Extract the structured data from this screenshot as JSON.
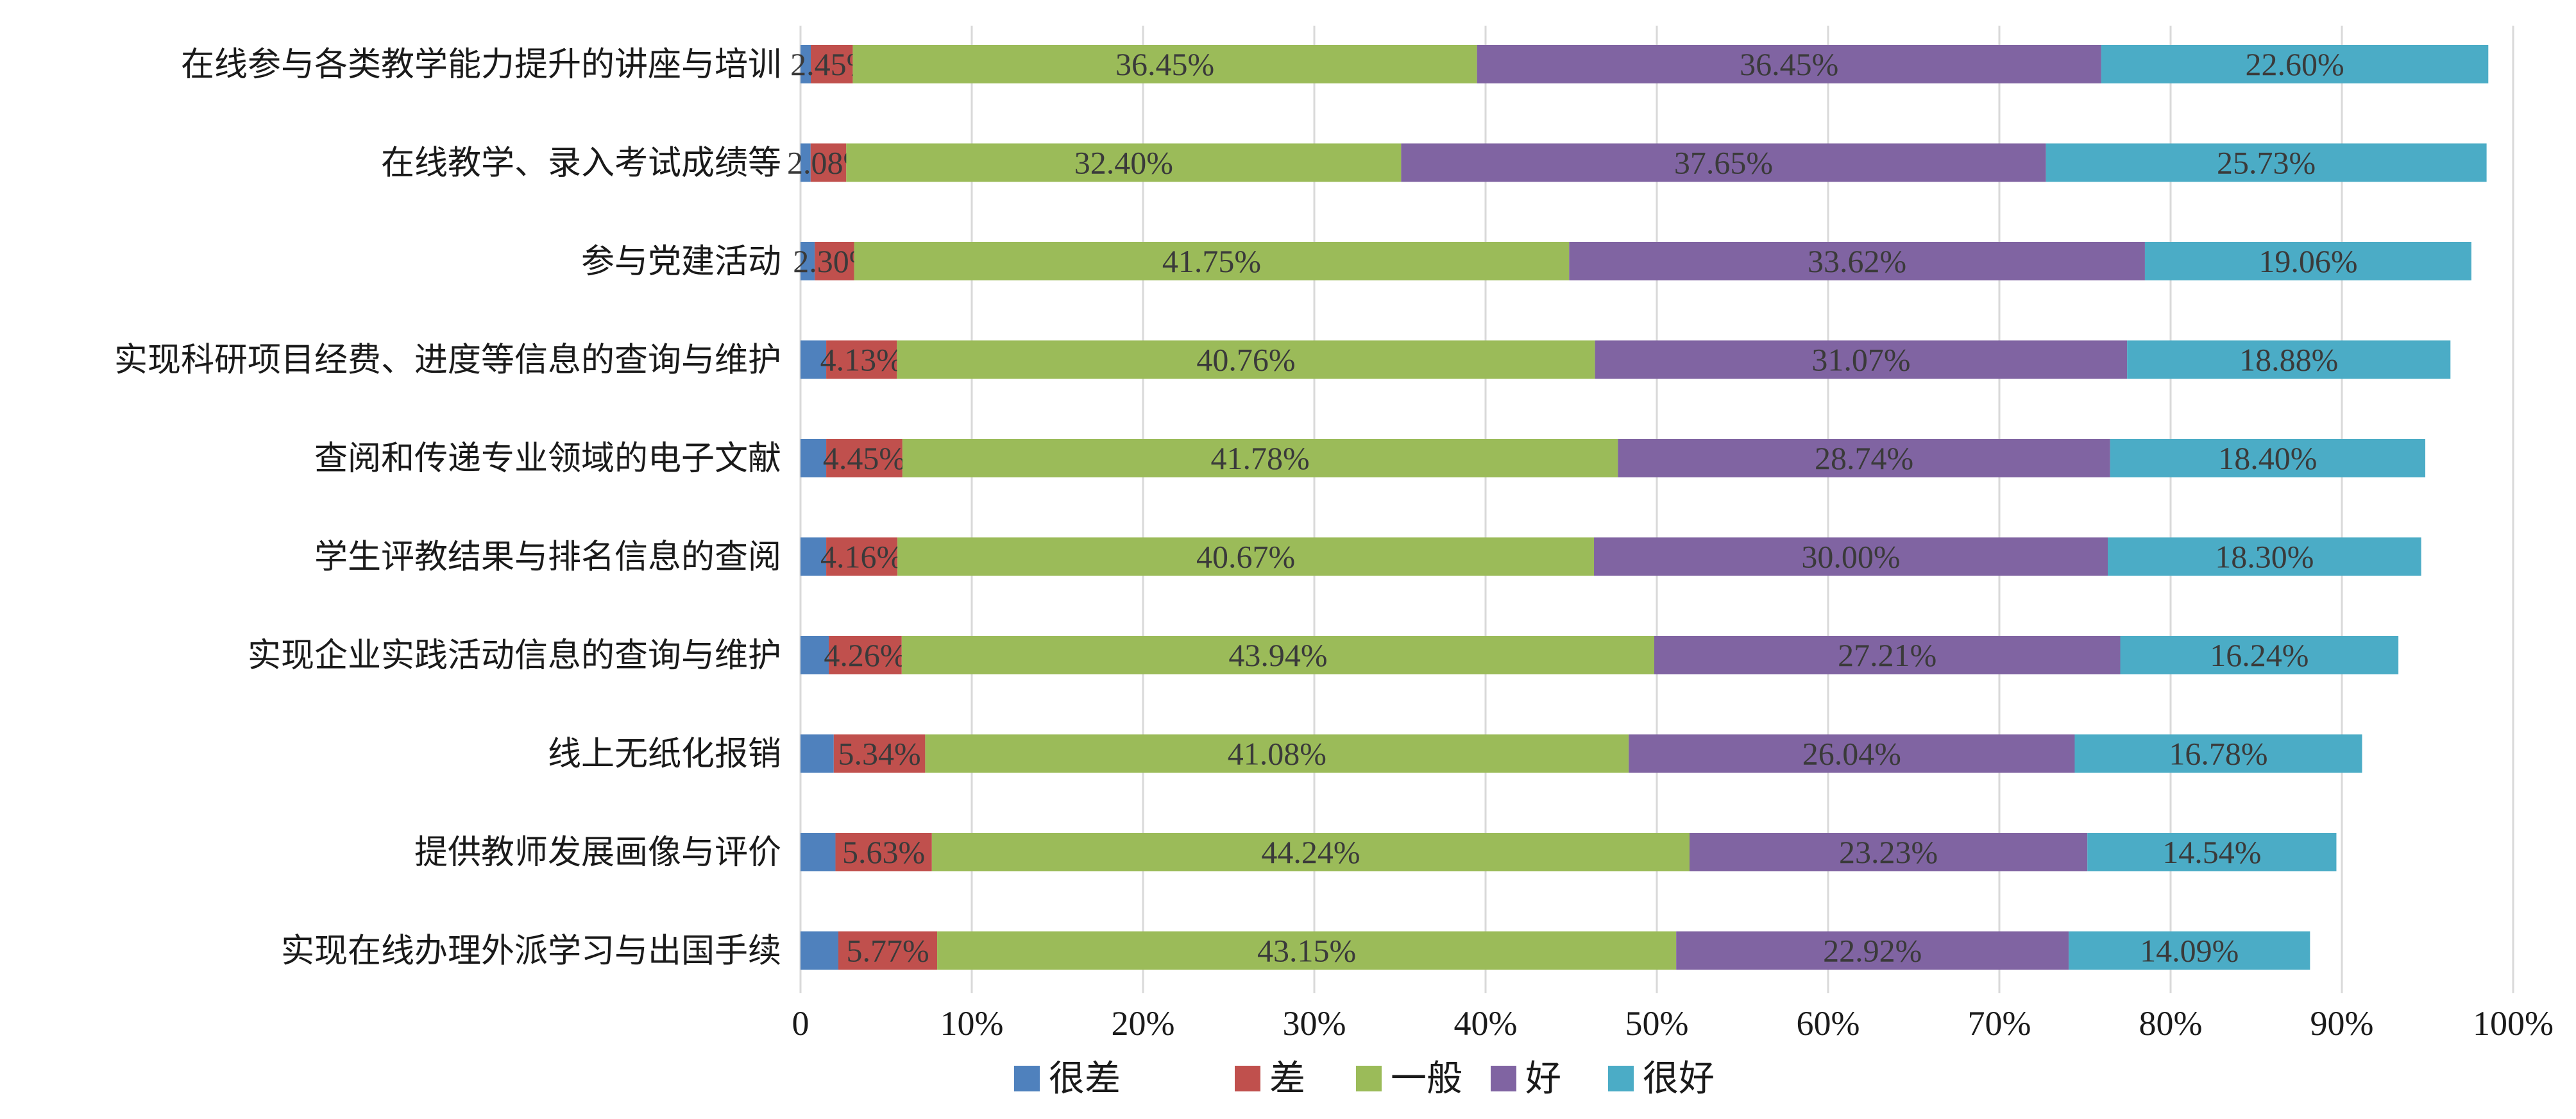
{
  "chart_data": {
    "type": "bar",
    "orientation": "horizontal",
    "stacked": "percent",
    "categories": [
      "在线参与各类教学能力提升的讲座与培训",
      "在线教学、录入考试成绩等",
      "参与党建活动",
      "实现科研项目经费、进度等信息的查询与维护",
      "查阅和传递专业领域的电子文献",
      "学生评教结果与排名信息的查阅",
      "实现企业实践活动信息的查询与维护",
      "线上无纸化报销",
      "提供教师发展画像与评价",
      "实现在线办理外派学习与出国手续"
    ],
    "series": [
      {
        "name": "很差",
        "color": "#4f81bd",
        "values": [
          0.6,
          0.59,
          0.83,
          1.5,
          1.5,
          1.5,
          1.65,
          1.94,
          2.04,
          2.21
        ]
      },
      {
        "name": "差",
        "color": "#c0504d",
        "values": [
          2.45,
          2.08,
          2.3,
          4.13,
          4.45,
          4.16,
          4.26,
          5.34,
          5.63,
          5.77
        ]
      },
      {
        "name": "一般",
        "color": "#9bbb59",
        "values": [
          36.45,
          32.4,
          41.75,
          40.76,
          41.78,
          40.67,
          43.94,
          41.08,
          44.24,
          43.15
        ]
      },
      {
        "name": "好",
        "color": "#8064a2",
        "values": [
          36.45,
          37.65,
          33.62,
          31.07,
          28.74,
          30.0,
          27.21,
          26.04,
          23.23,
          22.92
        ]
      },
      {
        "name": "很好",
        "color": "#4bacc6",
        "values": [
          22.6,
          25.73,
          19.06,
          18.88,
          18.4,
          18.3,
          16.24,
          16.78,
          14.54,
          14.09
        ]
      }
    ],
    "data_labels": [
      [
        "",
        "2.45%",
        "36.45%",
        "36.45%",
        "22.60%"
      ],
      [
        "",
        "2.08%",
        "32.40%",
        "37.65%",
        "25.73%"
      ],
      [
        "",
        "2.30%",
        "41.75%",
        "33.62%",
        "19.06%"
      ],
      [
        "",
        "4.13%",
        "40.76%",
        "31.07%",
        "18.88%"
      ],
      [
        "",
        "4.45%",
        "41.78%",
        "28.74%",
        "18.40%"
      ],
      [
        "",
        "4.16%",
        "40.67%",
        "30.00%",
        "18.30%"
      ],
      [
        "",
        "4.26%",
        "43.94%",
        "27.21%",
        "16.24%"
      ],
      [
        "",
        "5.34%",
        "41.08%",
        "26.04%",
        "16.78%"
      ],
      [
        "",
        "5.63%",
        "44.24%",
        "23.23%",
        "14.54%"
      ],
      [
        "",
        "5.77%",
        "43.15%",
        "22.92%",
        "14.09%"
      ]
    ],
    "x_ticks": [
      "0",
      "10%",
      "20%",
      "30%",
      "40%",
      "50%",
      "60%",
      "70%",
      "80%",
      "90%",
      "100%"
    ],
    "xlim": [
      0,
      100
    ],
    "grid": true,
    "legend_position": "bottom"
  }
}
